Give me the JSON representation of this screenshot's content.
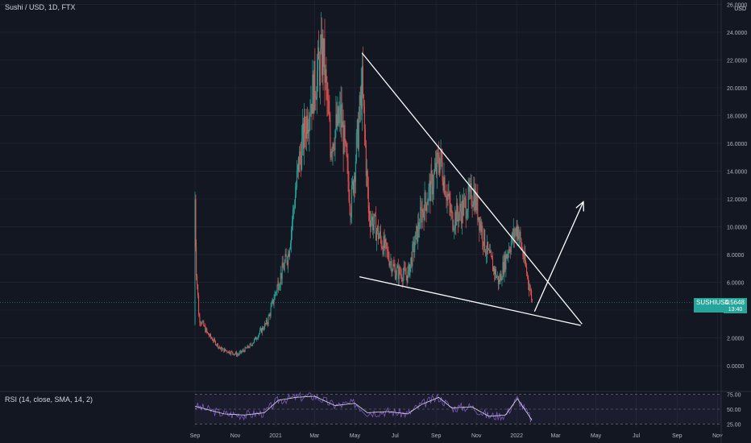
{
  "header": {
    "symbol_title": "Sushi / USD, 1D, FTX",
    "currency": "USD"
  },
  "price_badge": {
    "symbol": "SUSHIUSD",
    "price": "4.5648",
    "countdown": "13:40",
    "color": "#26a69a"
  },
  "rsi": {
    "title": "RSI (14, close, SMA, 14, 2)",
    "levels": [
      "75.00",
      "50.00",
      "25.00"
    ],
    "line_color": "#7e57c2",
    "ma_color": "#e0e0e0"
  },
  "colors": {
    "up": "#26a69a",
    "down": "#ef5350",
    "background": "#131722",
    "drawing": "#ffffff"
  },
  "chart_data": {
    "type": "candlestick",
    "x_tick_labels": [
      "Sep",
      "Nov",
      "2021",
      "Mar",
      "May",
      "Jul",
      "Sep",
      "Nov",
      "2022",
      "Mar",
      "May",
      "Jul",
      "Sep",
      "Nov"
    ],
    "y_tick_labels": [
      "26.0000",
      "24.0000",
      "22.0000",
      "20.0000",
      "18.0000",
      "16.0000",
      "14.0000",
      "12.0000",
      "10.0000",
      "8.0000",
      "6.0000",
      "4.0000",
      "2.0000",
      "0.0000"
    ],
    "ylim": [
      0,
      26
    ],
    "grid": true,
    "close_path": [
      {
        "x": "2020-09-01",
        "y": 3.0
      },
      {
        "x": "2020-09-01",
        "y": 12.0
      },
      {
        "x": "2020-09-03",
        "y": 7.0
      },
      {
        "x": "2020-09-07",
        "y": 3.5
      },
      {
        "x": "2020-09-20",
        "y": 2.3
      },
      {
        "x": "2020-10-10",
        "y": 1.2
      },
      {
        "x": "2020-11-05",
        "y": 0.8
      },
      {
        "x": "2020-11-25",
        "y": 1.5
      },
      {
        "x": "2020-12-20",
        "y": 3.2
      },
      {
        "x": "2021-01-05",
        "y": 6.0
      },
      {
        "x": "2021-01-20",
        "y": 8.0
      },
      {
        "x": "2021-02-05",
        "y": 14.5
      },
      {
        "x": "2021-02-20",
        "y": 18.5
      },
      {
        "x": "2021-03-05",
        "y": 21.0
      },
      {
        "x": "2021-03-14",
        "y": 22.5
      },
      {
        "x": "2021-03-25",
        "y": 16.0
      },
      {
        "x": "2021-04-10",
        "y": 18.0
      },
      {
        "x": "2021-04-25",
        "y": 11.5
      },
      {
        "x": "2021-05-12",
        "y": 20.0
      },
      {
        "x": "2021-05-22",
        "y": 11.0
      },
      {
        "x": "2021-06-10",
        "y": 9.0
      },
      {
        "x": "2021-07-01",
        "y": 6.8
      },
      {
        "x": "2021-07-20",
        "y": 6.5
      },
      {
        "x": "2021-08-10",
        "y": 11.0
      },
      {
        "x": "2021-08-25",
        "y": 13.0
      },
      {
        "x": "2021-09-07",
        "y": 15.0
      },
      {
        "x": "2021-09-25",
        "y": 10.5
      },
      {
        "x": "2021-10-15",
        "y": 11.5
      },
      {
        "x": "2021-10-28",
        "y": 12.5
      },
      {
        "x": "2021-11-15",
        "y": 8.5
      },
      {
        "x": "2021-12-05",
        "y": 6.0
      },
      {
        "x": "2021-12-20",
        "y": 8.5
      },
      {
        "x": "2022-01-02",
        "y": 10.0
      },
      {
        "x": "2022-01-15",
        "y": 7.0
      },
      {
        "x": "2022-01-25",
        "y": 4.56
      }
    ],
    "rsi_values": [
      {
        "x": "2020-09-01",
        "y": 55
      },
      {
        "x": "2020-10-15",
        "y": 42
      },
      {
        "x": "2020-11-15",
        "y": 40
      },
      {
        "x": "2020-12-15",
        "y": 44
      },
      {
        "x": "2021-01-05",
        "y": 65
      },
      {
        "x": "2021-02-01",
        "y": 70
      },
      {
        "x": "2021-03-01",
        "y": 72
      },
      {
        "x": "2021-04-01",
        "y": 56
      },
      {
        "x": "2021-05-01",
        "y": 60
      },
      {
        "x": "2021-05-20",
        "y": 44
      },
      {
        "x": "2021-06-20",
        "y": 46
      },
      {
        "x": "2021-07-20",
        "y": 42
      },
      {
        "x": "2021-08-10",
        "y": 58
      },
      {
        "x": "2021-09-05",
        "y": 70
      },
      {
        "x": "2021-09-25",
        "y": 52
      },
      {
        "x": "2021-10-25",
        "y": 54
      },
      {
        "x": "2021-11-20",
        "y": 38
      },
      {
        "x": "2021-12-15",
        "y": 40
      },
      {
        "x": "2022-01-02",
        "y": 68
      },
      {
        "x": "2022-01-25",
        "y": 30
      }
    ],
    "trendlines": [
      {
        "name": "upper",
        "from": {
          "x": "2021-05-12",
          "y": 22.5
        },
        "to": {
          "x": "2022-04-10",
          "y": 3.0
        }
      },
      {
        "name": "lower",
        "from": {
          "x": "2021-05-08",
          "y": 6.4
        },
        "to": {
          "x": "2022-04-08",
          "y": 2.9
        }
      },
      {
        "name": "arrow",
        "from": {
          "x": "2022-01-28",
          "y": 3.9
        },
        "to": {
          "x": "2022-04-12",
          "y": 11.8
        }
      }
    ]
  }
}
